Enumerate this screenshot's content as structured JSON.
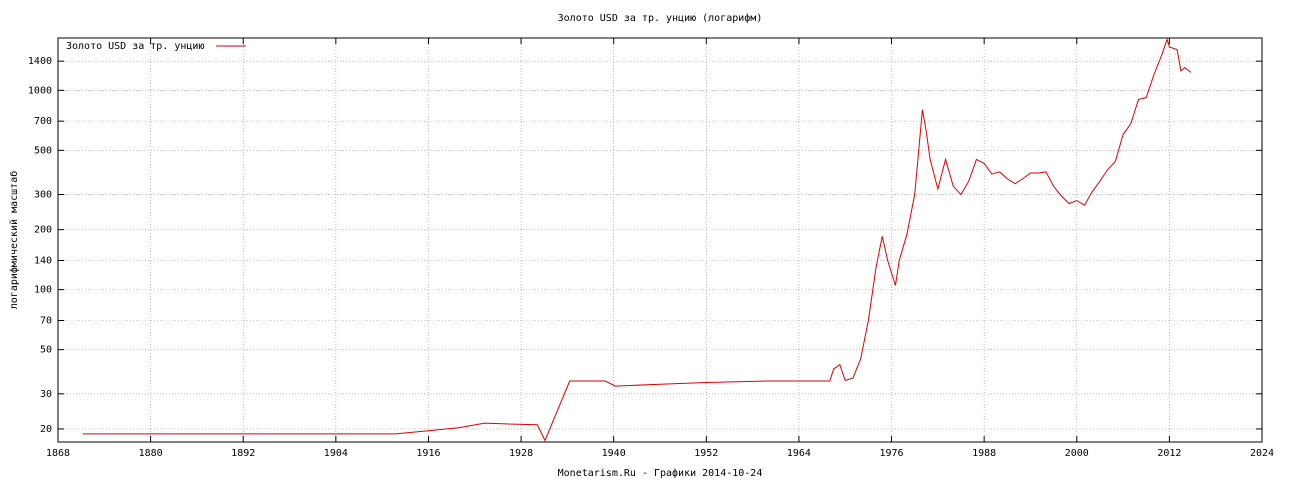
{
  "chart_data": {
    "type": "line",
    "title": "Золото USD за тр. унцию (логарифм)",
    "y_label": "логарифмический масштаб",
    "footer": "Monetarism.Ru - Графики  2014-10-24",
    "log_y": true,
    "grid": true,
    "legend": "top-left",
    "xlim": [
      1868,
      2024
    ],
    "xticks": [
      1868,
      1880,
      1892,
      1904,
      1916,
      1928,
      1940,
      1952,
      1964,
      1976,
      1988,
      2000,
      2012,
      2024
    ],
    "ylim": [
      17.2,
      1830
    ],
    "yticks": [
      20,
      30,
      50,
      70,
      100,
      140,
      200,
      300,
      500,
      700,
      1000,
      1400
    ],
    "x": [
      1871.2,
      1911.7,
      1916,
      1920,
      1923.3,
      1926,
      1930.1,
      1931.1,
      1934.3,
      1938.9,
      1940.2,
      1946,
      1952,
      1960,
      1968,
      1968.5,
      1969.3,
      1970,
      1971,
      1972,
      1973,
      1974,
      1974.8,
      1975.5,
      1976.5,
      1977,
      1978,
      1979,
      1980,
      1980.5,
      1981,
      1982,
      1983,
      1984,
      1985,
      1986,
      1987,
      1988,
      1989,
      1990,
      1991,
      1992,
      1993,
      1994,
      1995,
      1996,
      1997,
      1998,
      1999,
      2000,
      2001,
      2002,
      2003,
      2004,
      2005,
      2006,
      2007,
      2008,
      2009,
      2010,
      2011,
      2011.7,
      2012,
      2013,
      2013.5,
      2014,
      2014.8
    ],
    "series": [
      {
        "name": "Золото USD за тр. унцию",
        "color": "#e00000",
        "values": [
          18.9,
          18.9,
          19.6,
          20.3,
          21.4,
          21.2,
          21,
          17.5,
          34.8,
          34.8,
          32.8,
          33.5,
          34.2,
          34.8,
          34.8,
          40,
          42,
          35,
          36,
          45,
          70,
          130,
          185,
          140,
          105,
          140,
          190,
          300,
          800,
          620,
          450,
          320,
          450,
          330,
          300,
          350,
          450,
          430,
          380,
          390,
          360,
          340,
          360,
          385,
          385,
          390,
          330,
          295,
          270,
          280,
          265,
          310,
          350,
          400,
          440,
          600,
          680,
          900,
          920,
          1200,
          1500,
          1800,
          1650,
          1600,
          1250,
          1300,
          1230
        ]
      }
    ]
  }
}
